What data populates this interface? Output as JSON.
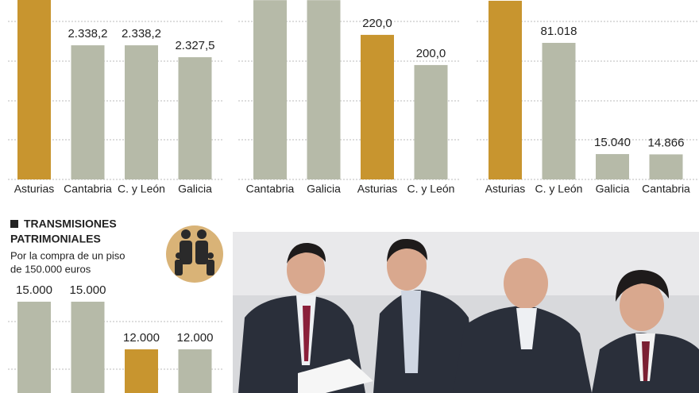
{
  "chart_data": [
    {
      "type": "bar",
      "categories": [
        "Asturias",
        "Cantabria",
        "C. y León",
        "Galicia"
      ],
      "values": [
        2378.9,
        2338.2,
        2338.2,
        2327.5
      ],
      "value_labels": [
        null,
        "2.338,2",
        "2.338,2",
        "2.327,5"
      ],
      "colors": [
        "#c8952f",
        "#b6baa8",
        "#b6baa8",
        "#b6baa8"
      ],
      "ylim": [
        2217.7,
        2378.9
      ],
      "grid": true
    },
    {
      "type": "bar",
      "categories": [
        "Cantabria",
        "Galicia",
        "Asturias",
        "C. y León"
      ],
      "values": [
        243,
        243,
        220,
        200
      ],
      "value_labels": [
        null,
        null,
        "220,0",
        "200,0"
      ],
      "colors": [
        "#b6baa8",
        "#b6baa8",
        "#c8952f",
        "#b6baa8"
      ],
      "ylim": [
        124.2,
        243.1
      ],
      "grid": true
    },
    {
      "type": "bar",
      "categories": [
        "Asturias",
        "C. y León",
        "Galicia",
        "Cantabria"
      ],
      "values": [
        106000,
        81018,
        15040,
        14866
      ],
      "value_labels": [
        null,
        "81.018",
        "15.040",
        "14.866"
      ],
      "colors": [
        "#c8952f",
        "#b6baa8",
        "#b6baa8",
        "#b6baa8"
      ],
      "ylim": [
        0,
        106450
      ],
      "grid": true
    },
    {
      "type": "bar",
      "title": [
        "TRANSMISIONES",
        "PATRIMONIALES"
      ],
      "subtitle": [
        "Por la compra de un piso",
        "de 150.000 euros"
      ],
      "values": [
        15000,
        15000,
        12000,
        12000
      ],
      "value_labels": [
        "15.000",
        "15.000",
        "12.000",
        "12.000"
      ],
      "colors": [
        "#b6baa8",
        "#b6baa8",
        "#c8952f",
        "#b6baa8"
      ],
      "ylim": [
        9250,
        16000
      ],
      "grid": true
    }
  ]
}
